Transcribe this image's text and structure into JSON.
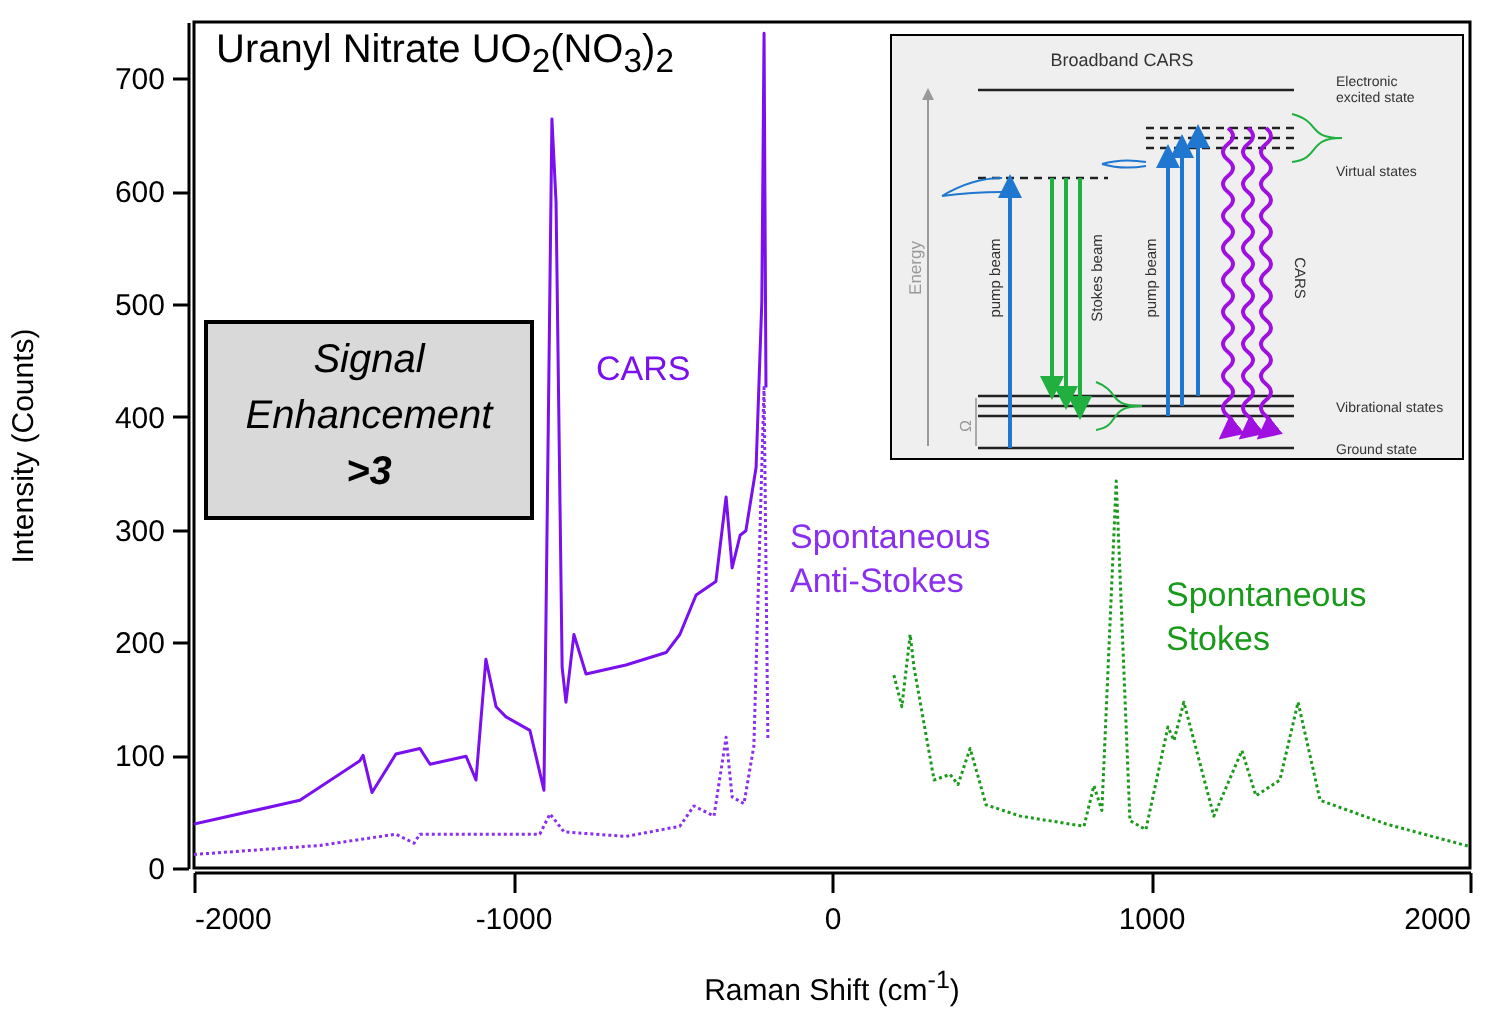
{
  "chart_data": {
    "type": "line",
    "title": "Uranyl Nitrate UO$_{2}$(NO$_{3}$)$_{2}$",
    "xlabel": "Raman Shift (cm$^{-1}$)",
    "ylabel": "Intensity (Counts)",
    "xlim": [
      -2000,
      2000
    ],
    "xticks": [
      -2000,
      -1000,
      0,
      1000,
      2000
    ],
    "ylim": [
      0,
      750
    ],
    "yticks": [
      0,
      100,
      200,
      300,
      400,
      500,
      600,
      700
    ],
    "series": [
      {
        "name": "CARS",
        "color": "#7a0ff0",
        "line_style": "solid",
        "x": [
          -2000,
          -1668,
          -1480,
          -1470,
          -1442,
          -1367,
          -1292,
          -1260,
          -1147,
          -1116,
          -1085,
          -1053,
          -1022,
          -947,
          -903,
          -878,
          -865,
          -846,
          -834,
          -809,
          -771,
          -646,
          -520,
          -477,
          -426,
          -364,
          -332,
          -313,
          -288,
          -270,
          -238,
          -220,
          -213,
          -207
        ],
        "values": [
          39,
          60,
          95,
          100,
          67,
          101,
          106,
          92,
          99,
          78,
          185,
          143,
          134,
          122,
          69,
          664,
          590,
          178,
          147,
          207,
          172,
          180,
          191,
          207,
          242,
          254,
          329,
          266,
          295,
          299,
          355,
          502,
          740,
          426
        ]
      },
      {
        "name": "Spontaneous Anti-Stokes",
        "color": "#8a2ff0",
        "line_style": "dotted",
        "x": [
          -2000,
          -1605,
          -1367,
          -1310,
          -1292,
          -1060,
          -916,
          -884,
          -840,
          -646,
          -477,
          -433,
          -370,
          -332,
          -313,
          -276,
          -245,
          -232,
          -213,
          -201
        ],
        "values": [
          12,
          20,
          30,
          22,
          30,
          30,
          30,
          48,
          32,
          28,
          37,
          55,
          46,
          116,
          63,
          57,
          108,
          237,
          426,
          113
        ]
      },
      {
        "name": "Spontaneous Stokes",
        "color": "#1a9a1a",
        "line_style": "dotted",
        "x": [
          194,
          219,
          245,
          257,
          320,
          370,
          395,
          433,
          483,
          590,
          790,
          821,
          846,
          891,
          934,
          984,
          1053,
          1072,
          1103,
          1197,
          1285,
          1329,
          1404,
          1461,
          1530,
          1737,
          2000
        ],
        "values": [
          171,
          143,
          207,
          178,
          78,
          83,
          74,
          106,
          56,
          46,
          37,
          73,
          51,
          343,
          42,
          34,
          125,
          113,
          147,
          46,
          104,
          64,
          78,
          147,
          60,
          39,
          19
        ]
      }
    ],
    "annotations": [
      "Signal Enhancement >3",
      "Broadband CARS",
      "Electronic excited state",
      "Virtual states",
      "Vibrational states",
      "Ground state",
      "Energy",
      "pump beam",
      "Stokes beam",
      "pump beam",
      "CARS",
      "Ω"
    ]
  }
}
